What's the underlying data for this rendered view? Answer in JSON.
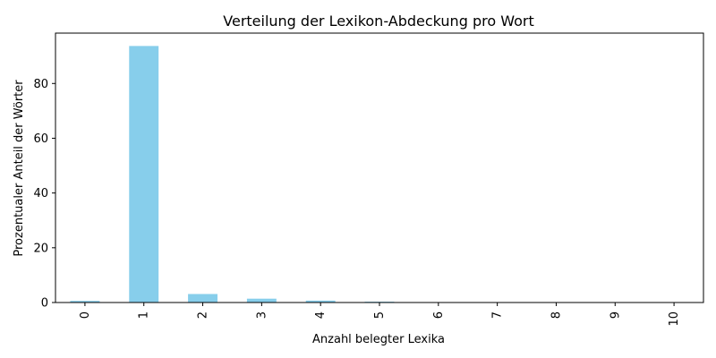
{
  "chart_data": {
    "type": "bar",
    "title": "Verteilung der Lexikon-Abdeckung pro Wort",
    "xlabel": "Anzahl belegter Lexika",
    "ylabel": "Prozentualer Anteil der Wörter",
    "categories": [
      "0",
      "1",
      "2",
      "3",
      "4",
      "5",
      "6",
      "7",
      "8",
      "9",
      "10"
    ],
    "values": [
      0.6,
      93.7,
      3.1,
      1.4,
      0.7,
      0.3,
      0.1,
      0.05,
      0.05,
      0.05,
      0.05
    ],
    "ylim": [
      0,
      98.4
    ],
    "yticks": [
      "0",
      "20",
      "40",
      "60",
      "80"
    ],
    "bar_color": "#87ceeb",
    "grid": false
  }
}
